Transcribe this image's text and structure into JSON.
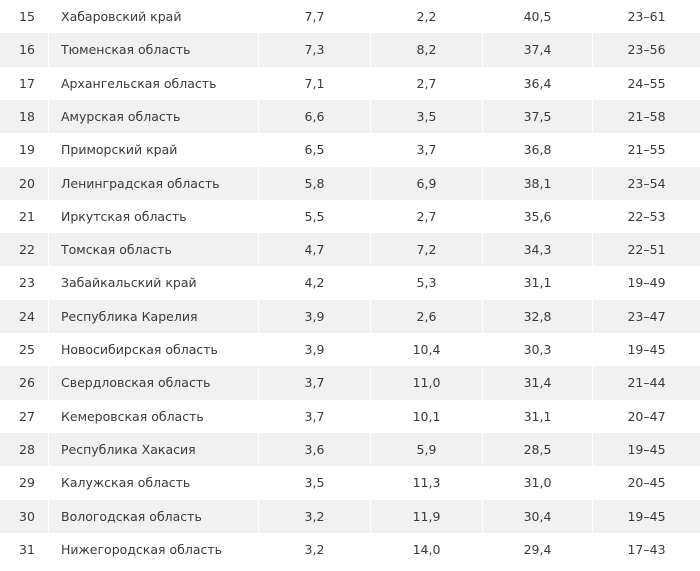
{
  "table": {
    "rows": [
      [
        "15",
        "Хабаровский край",
        "7,7",
        "2,2",
        "40,5",
        "23–61"
      ],
      [
        "16",
        "Тюменская область",
        "7,3",
        "8,2",
        "37,4",
        "23–56"
      ],
      [
        "17",
        "Архангельская область",
        "7,1",
        "2,7",
        "36,4",
        "24–55"
      ],
      [
        "18",
        "Амурская область",
        "6,6",
        "3,5",
        "37,5",
        "21–58"
      ],
      [
        "19",
        "Приморский край",
        "6,5",
        "3,7",
        "36,8",
        "21–55"
      ],
      [
        "20",
        "Ленинградская область",
        "5,8",
        "6,9",
        "38,1",
        "23–54"
      ],
      [
        "21",
        "Иркутская область",
        "5,5",
        "2,7",
        "35,6",
        "22–53"
      ],
      [
        "22",
        "Томская область",
        "4,7",
        "7,2",
        "34,3",
        "22–51"
      ],
      [
        "23",
        "Забайкальский край",
        "4,2",
        "5,3",
        "31,1",
        "19–49"
      ],
      [
        "24",
        "Республика Карелия",
        "3,9",
        "2,6",
        "32,8",
        "23–47"
      ],
      [
        "25",
        "Новосибирская область",
        "3,9",
        "10,4",
        "30,3",
        "19–45"
      ],
      [
        "26",
        "Свердловская область",
        "3,7",
        "11,0",
        "31,4",
        "21–44"
      ],
      [
        "27",
        "Кемеровская область",
        "3,7",
        "10,1",
        "31,1",
        "20–47"
      ],
      [
        "28",
        "Республика Хакасия",
        "3,6",
        "5,9",
        "28,5",
        "19–45"
      ],
      [
        "29",
        "Калужская область",
        "3,5",
        "11,3",
        "31,0",
        "20–45"
      ],
      [
        "30",
        "Вологодская область",
        "3,2",
        "11,9",
        "30,4",
        "19–45"
      ],
      [
        "31",
        "Нижегородская область",
        "3,2",
        "14,0",
        "29,4",
        "17–43"
      ]
    ]
  }
}
